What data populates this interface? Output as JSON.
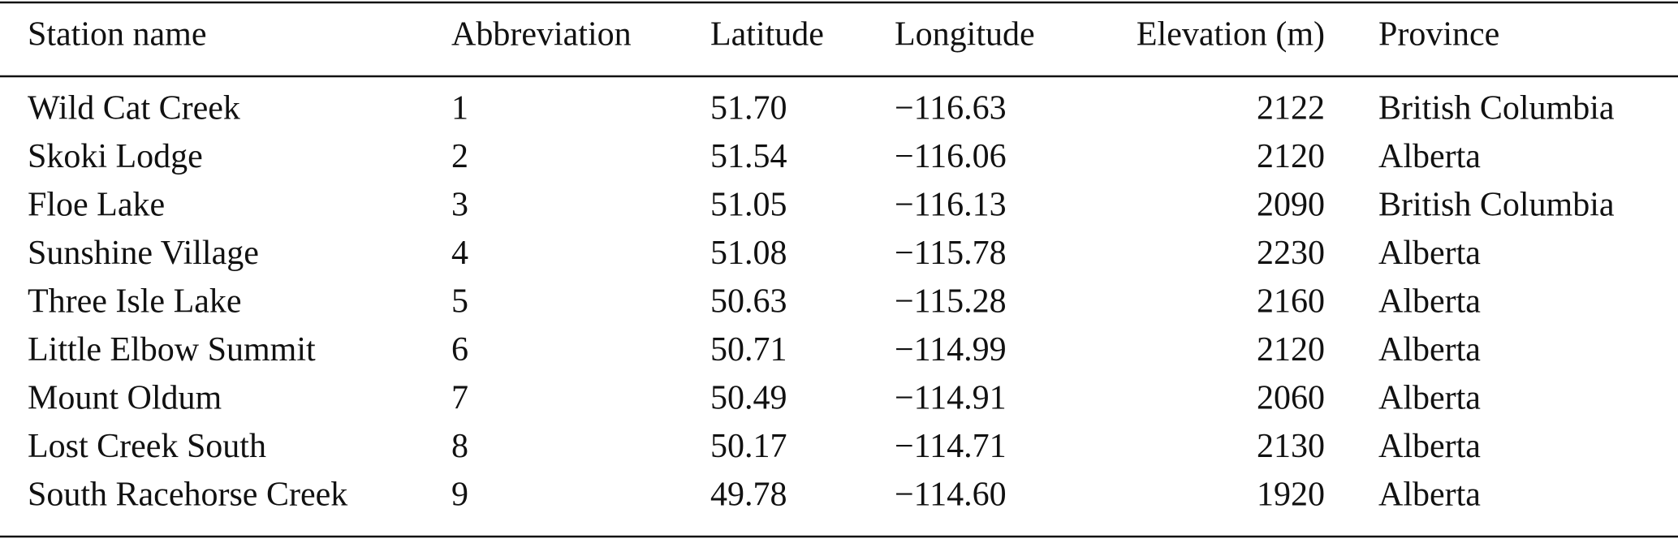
{
  "table": {
    "header": [
      "Station name",
      "Abbreviation",
      "Latitude",
      "Longitude",
      "Elevation (m)",
      "Province"
    ],
    "rows": [
      [
        "Wild Cat Creek",
        "1",
        "51.70",
        "−116.63",
        "2122",
        "British Columbia"
      ],
      [
        "Skoki Lodge",
        "2",
        "51.54",
        "−116.06",
        "2120",
        "Alberta"
      ],
      [
        "Floe Lake",
        "3",
        "51.05",
        "−116.13",
        "2090",
        "British Columbia"
      ],
      [
        "Sunshine Village",
        "4",
        "51.08",
        "−115.78",
        "2230",
        "Alberta"
      ],
      [
        "Three Isle Lake",
        "5",
        "50.63",
        "−115.28",
        "2160",
        "Alberta"
      ],
      [
        "Little Elbow Summit",
        "6",
        "50.71",
        "−114.99",
        "2120",
        "Alberta"
      ],
      [
        "Mount Oldum",
        "7",
        "50.49",
        "−114.91",
        "2060",
        "Alberta"
      ],
      [
        "Lost Creek South",
        "8",
        "50.17",
        "−114.71",
        "2130",
        "Alberta"
      ],
      [
        "South Racehorse Creek",
        "9",
        "49.78",
        "−114.60",
        "1920",
        "Alberta"
      ]
    ]
  }
}
